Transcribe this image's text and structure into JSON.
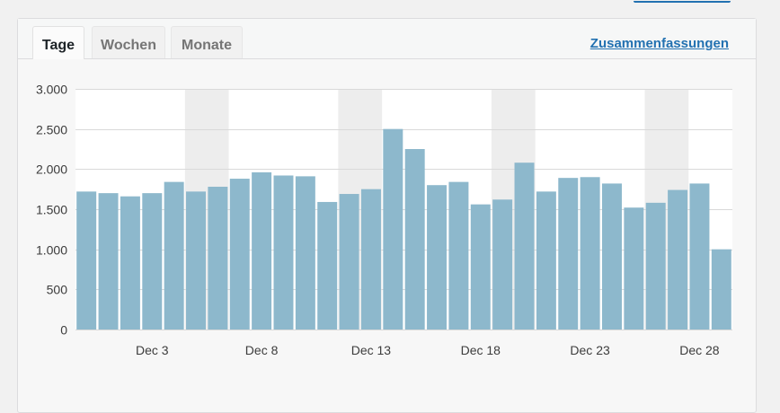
{
  "tabs": [
    {
      "label": "Tage",
      "active": true
    },
    {
      "label": "Wochen",
      "active": false
    },
    {
      "label": "Monate",
      "active": false
    }
  ],
  "summaries_link": "Zusammenfassungen",
  "chart_data": {
    "type": "bar",
    "x": [
      "Nov 30",
      "Dec 1",
      "Dec 2",
      "Dec 3",
      "Dec 4",
      "Dec 5",
      "Dec 6",
      "Dec 7",
      "Dec 8",
      "Dec 9",
      "Dec 10",
      "Dec 11",
      "Dec 12",
      "Dec 13",
      "Dec 14",
      "Dec 15",
      "Dec 16",
      "Dec 17",
      "Dec 18",
      "Dec 19",
      "Dec 20",
      "Dec 21",
      "Dec 22",
      "Dec 23",
      "Dec 24",
      "Dec 25",
      "Dec 26",
      "Dec 27",
      "Dec 28",
      "Dec 29"
    ],
    "values": [
      1720,
      1700,
      1660,
      1700,
      1840,
      1720,
      1780,
      1880,
      1960,
      1920,
      1910,
      1590,
      1690,
      1750,
      2500,
      2250,
      1800,
      1840,
      1560,
      1620,
      2080,
      1720,
      1890,
      1900,
      1820,
      1520,
      1580,
      1740,
      1820,
      1000
    ],
    "xtick_labels": [
      "Dec 3",
      "Dec 8",
      "Dec 13",
      "Dec 18",
      "Dec 23",
      "Dec 28"
    ],
    "ytick_labels": [
      "0",
      "500",
      "1.000",
      "1.500",
      "2.000",
      "2.500",
      "3.000"
    ],
    "ytick_values": [
      0,
      500,
      1000,
      1500,
      2000,
      2500,
      3000
    ],
    "ylim": [
      0,
      3000
    ],
    "weekend_bands": [
      [
        "Dec 5",
        "Dec 6"
      ],
      [
        "Dec 12",
        "Dec 13"
      ],
      [
        "Dec 19",
        "Dec 20"
      ],
      [
        "Dec 26",
        "Dec 27"
      ]
    ],
    "grid": true,
    "legend": "none",
    "bar_color": "#8db8cc",
    "band_color": "#ededed",
    "title": "",
    "xlabel": "",
    "ylabel": ""
  }
}
